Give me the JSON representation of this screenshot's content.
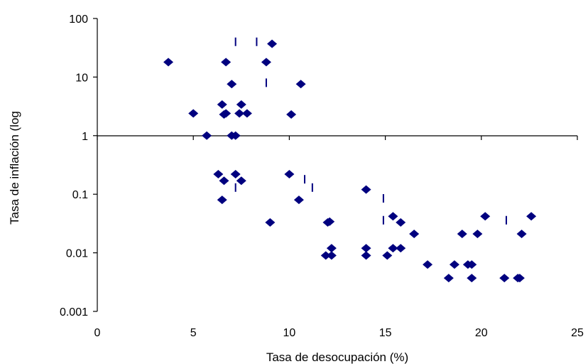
{
  "chart_data": {
    "type": "scatter",
    "title": "",
    "xlabel": "Tasa de desocupación (%)",
    "ylabel": "Tasa de inflación (log",
    "xlim": [
      0,
      25
    ],
    "ylim": [
      0.001,
      100
    ],
    "y_scale": "log",
    "x_ticks": [
      "0",
      "5",
      "10",
      "15",
      "20",
      "25"
    ],
    "y_ticks": [
      "0.001",
      "0.01",
      "0.1",
      "1",
      "10",
      "100"
    ],
    "grid": false,
    "legend": "none",
    "marker_color": "#00007F",
    "series": [
      {
        "marker": "diamond",
        "points": [
          [
            3.7,
            18
          ],
          [
            5.0,
            2.4
          ],
          [
            5.7,
            1.0
          ],
          [
            6.3,
            0.22
          ],
          [
            6.5,
            3.4
          ],
          [
            6.5,
            0.08
          ],
          [
            6.6,
            2.3
          ],
          [
            6.6,
            0.17
          ],
          [
            6.7,
            18
          ],
          [
            6.7,
            2.4
          ],
          [
            7.0,
            7.6
          ],
          [
            7.0,
            1.0
          ],
          [
            7.2,
            1.0
          ],
          [
            7.2,
            0.22
          ],
          [
            7.4,
            2.4
          ],
          [
            7.5,
            3.4
          ],
          [
            7.5,
            0.17
          ],
          [
            7.8,
            2.4
          ],
          [
            8.8,
            18
          ],
          [
            9.0,
            0.033
          ],
          [
            9.1,
            37
          ],
          [
            10.0,
            0.22
          ],
          [
            10.1,
            2.3
          ],
          [
            10.5,
            0.08
          ],
          [
            10.6,
            7.6
          ],
          [
            11.9,
            0.009
          ],
          [
            12.0,
            0.033
          ],
          [
            12.1,
            0.034
          ],
          [
            12.2,
            0.012
          ],
          [
            12.2,
            0.009
          ],
          [
            14.0,
            0.12
          ],
          [
            14.0,
            0.012
          ],
          [
            14.0,
            0.009
          ],
          [
            15.1,
            0.009
          ],
          [
            15.4,
            0.042
          ],
          [
            15.4,
            0.012
          ],
          [
            15.8,
            0.033
          ],
          [
            15.8,
            0.012
          ],
          [
            16.5,
            0.021
          ],
          [
            17.2,
            0.0063
          ],
          [
            18.3,
            0.0037
          ],
          [
            18.6,
            0.0063
          ],
          [
            19.0,
            0.021
          ],
          [
            19.3,
            0.0063
          ],
          [
            19.5,
            0.0063
          ],
          [
            19.5,
            0.0037
          ],
          [
            19.8,
            0.021
          ],
          [
            20.2,
            0.042
          ],
          [
            21.2,
            0.0037
          ],
          [
            21.9,
            0.0037
          ],
          [
            22.0,
            0.0037
          ],
          [
            22.1,
            0.021
          ],
          [
            22.6,
            0.042
          ]
        ]
      },
      {
        "marker": "dash",
        "points": [
          [
            7.2,
            40
          ],
          [
            8.3,
            40
          ],
          [
            8.8,
            8
          ],
          [
            7.2,
            0.13
          ],
          [
            10.8,
            0.18
          ],
          [
            11.2,
            0.13
          ],
          [
            14.9,
            0.085
          ],
          [
            14.9,
            0.036
          ],
          [
            21.3,
            0.036
          ]
        ]
      }
    ]
  }
}
